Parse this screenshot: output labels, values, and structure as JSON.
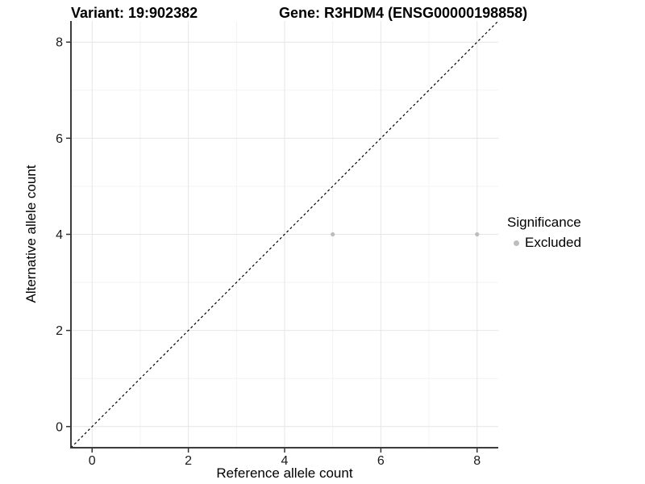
{
  "titles": {
    "variant": "Variant: 19:902382",
    "gene": "Gene: R3HDM4 (ENSG00000198858)"
  },
  "legend": {
    "title": "Significance",
    "items": [
      {
        "label": "Excluded",
        "color": "#bdbdbd"
      }
    ]
  },
  "chart_data": {
    "type": "scatter",
    "title": "Variant: 19:902382  |  Gene: R3HDM4 (ENSG00000198858)",
    "xlabel": "Reference allele count",
    "ylabel": "Alternative allele count",
    "xlim": [
      -0.44,
      8.44
    ],
    "ylim": [
      -0.44,
      8.44
    ],
    "x_ticks": [
      0,
      2,
      4,
      6,
      8
    ],
    "y_ticks": [
      0,
      2,
      4,
      6,
      8
    ],
    "x_minor_ticks": [
      1,
      3,
      5,
      7
    ],
    "y_minor_ticks": [
      1,
      3,
      5,
      7
    ],
    "grid": true,
    "legend_position": "right",
    "series": [
      {
        "name": "Excluded",
        "color": "#bdbdbd",
        "points": [
          {
            "x": 5,
            "y": 4
          },
          {
            "x": 8,
            "y": 4
          }
        ]
      }
    ],
    "reference_line": {
      "type": "identity",
      "style": "dashed",
      "color": "#000000"
    },
    "colors": {
      "major_grid": "#e6e6e6",
      "minor_grid": "#f3f3f3",
      "axis_line": "#3c3c3c",
      "tick_mark": "#333333",
      "point": "#bdbdbd"
    }
  }
}
